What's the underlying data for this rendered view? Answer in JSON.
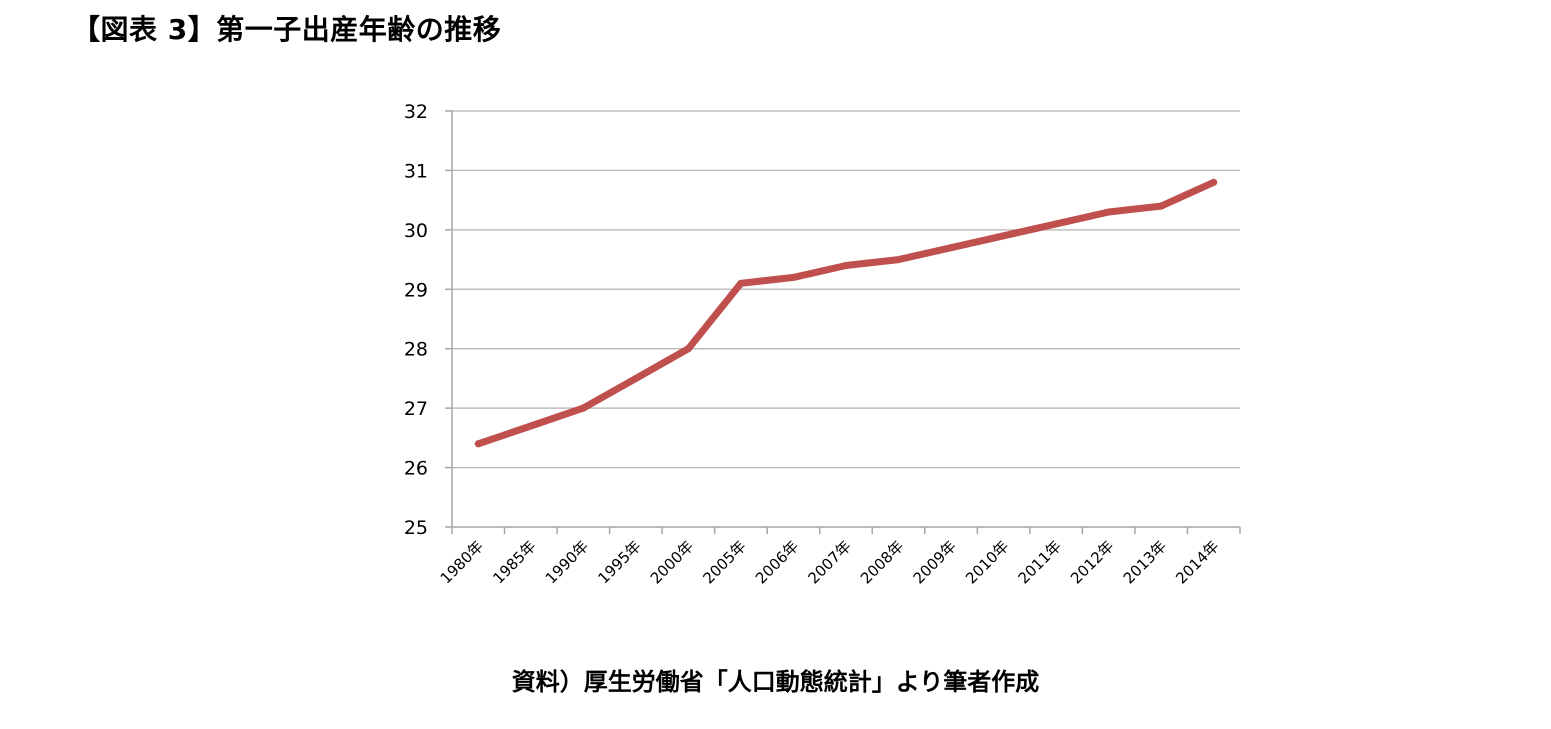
{
  "title": "【図表 3】第一子出産年齢の推移",
  "source": "資料）厚生労働省「人口動態統計」より筆者作成",
  "chart_data": {
    "type": "line",
    "title": "【図表 3】第一子出産年齢の推移",
    "xlabel": "",
    "ylabel": "",
    "categories": [
      "1980年",
      "1985年",
      "1990年",
      "1995年",
      "2000年",
      "2005年",
      "2006年",
      "2007年",
      "2008年",
      "2009年",
      "2010年",
      "2011年",
      "2012年",
      "2013年",
      "2014年"
    ],
    "series": [
      {
        "values": [
          26.4,
          26.7,
          27.0,
          27.5,
          28.0,
          29.1,
          29.2,
          29.4,
          29.5,
          29.7,
          29.9,
          30.1,
          30.3,
          30.4,
          30.8
        ],
        "color": "#c0504d"
      }
    ],
    "ylim": [
      25,
      32
    ],
    "yticks": [
      25,
      26,
      27,
      28,
      29,
      30,
      31,
      32
    ],
    "grid": true,
    "legend": "none",
    "colors": {
      "line": "#c0504d",
      "grid": "#bfbfbf",
      "axis": "#a6a6a6"
    }
  }
}
